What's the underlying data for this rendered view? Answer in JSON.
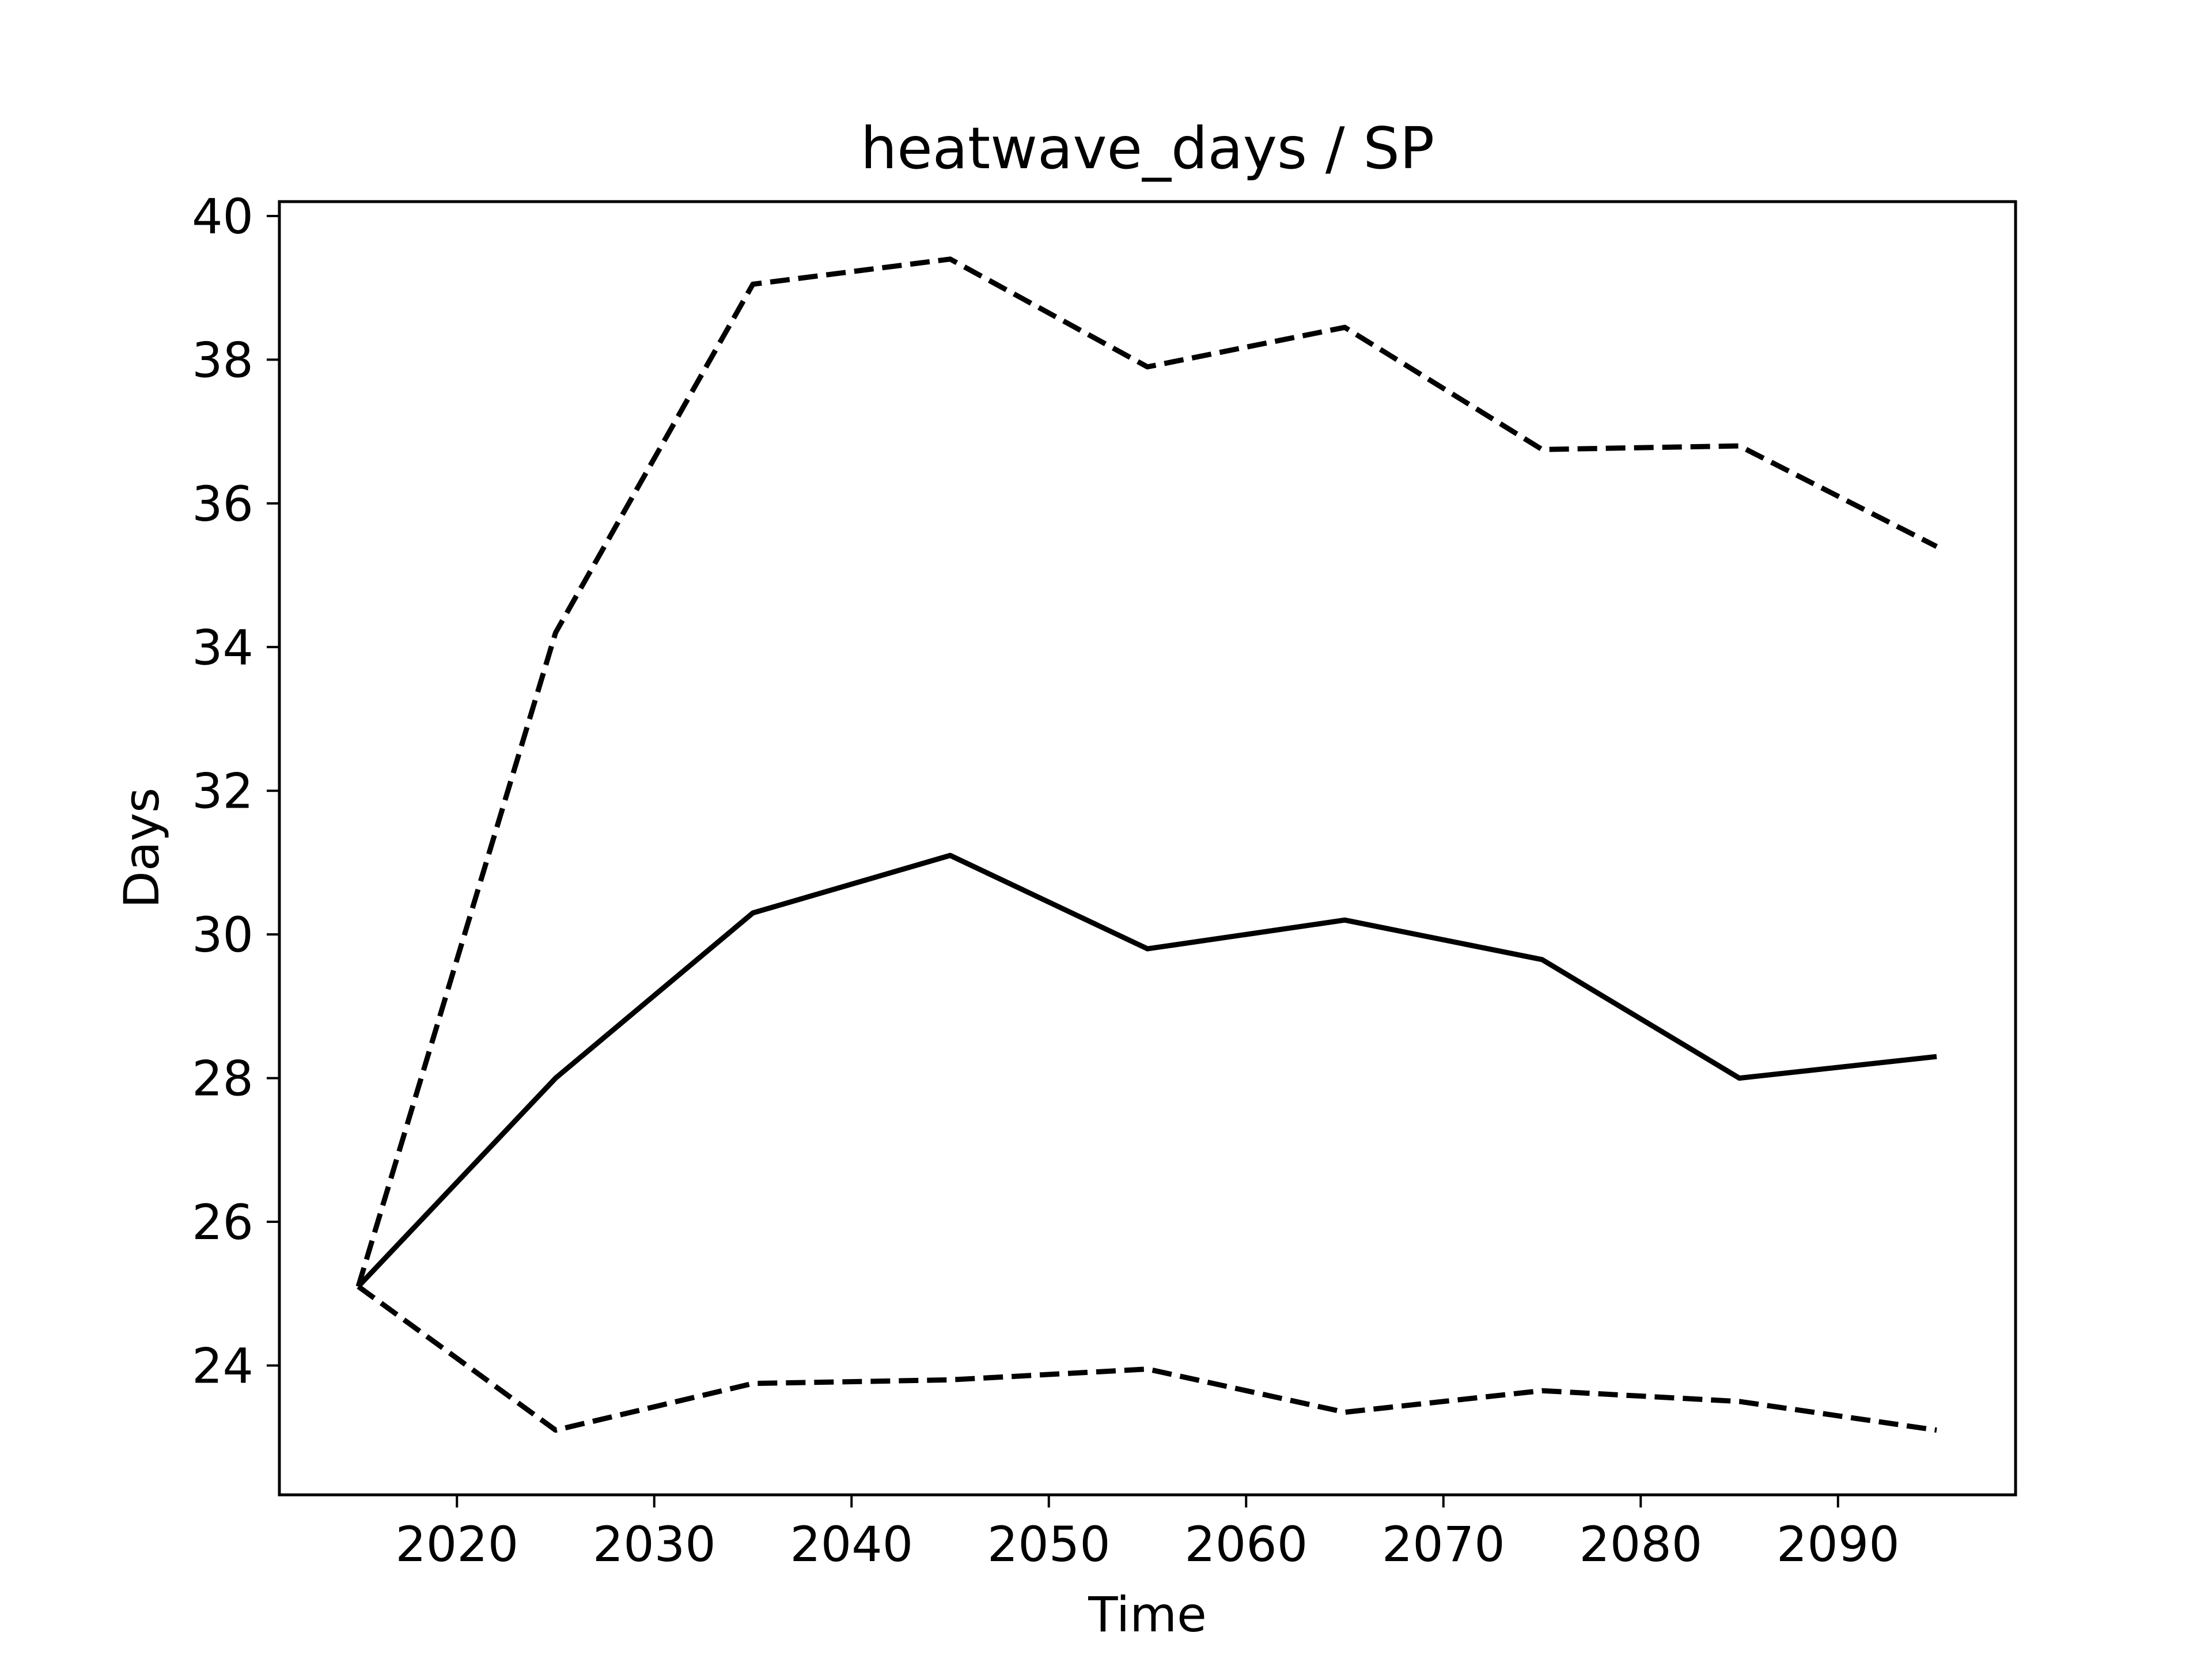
{
  "chart_data": {
    "type": "line",
    "title": "heatwave_days / SP",
    "xlabel": "Time",
    "ylabel": "Days",
    "x": [
      2015,
      2025,
      2035,
      2045,
      2055,
      2065,
      2075,
      2085,
      2095
    ],
    "series": [
      {
        "line_style": "dashed",
        "color": "#000000",
        "values": [
          25.1,
          34.2,
          39.05,
          39.4,
          37.9,
          38.45,
          36.75,
          36.8,
          35.4
        ]
      },
      {
        "line_style": "solid",
        "color": "#000000",
        "values": [
          25.1,
          28.0,
          30.3,
          31.1,
          29.8,
          30.2,
          29.65,
          28.0,
          28.3
        ]
      },
      {
        "line_style": "dashed",
        "color": "#000000",
        "values": [
          25.1,
          23.1,
          23.75,
          23.8,
          23.95,
          23.35,
          23.65,
          23.5,
          23.1
        ]
      }
    ],
    "xlim": [
      2011,
      2099
    ],
    "ylim": [
      22.2,
      40.2
    ],
    "xticks": [
      2020,
      2030,
      2040,
      2050,
      2060,
      2070,
      2080,
      2090
    ],
    "yticks": [
      24,
      26,
      28,
      30,
      32,
      34,
      36,
      38,
      40
    ],
    "grid": false,
    "legend": "none"
  }
}
